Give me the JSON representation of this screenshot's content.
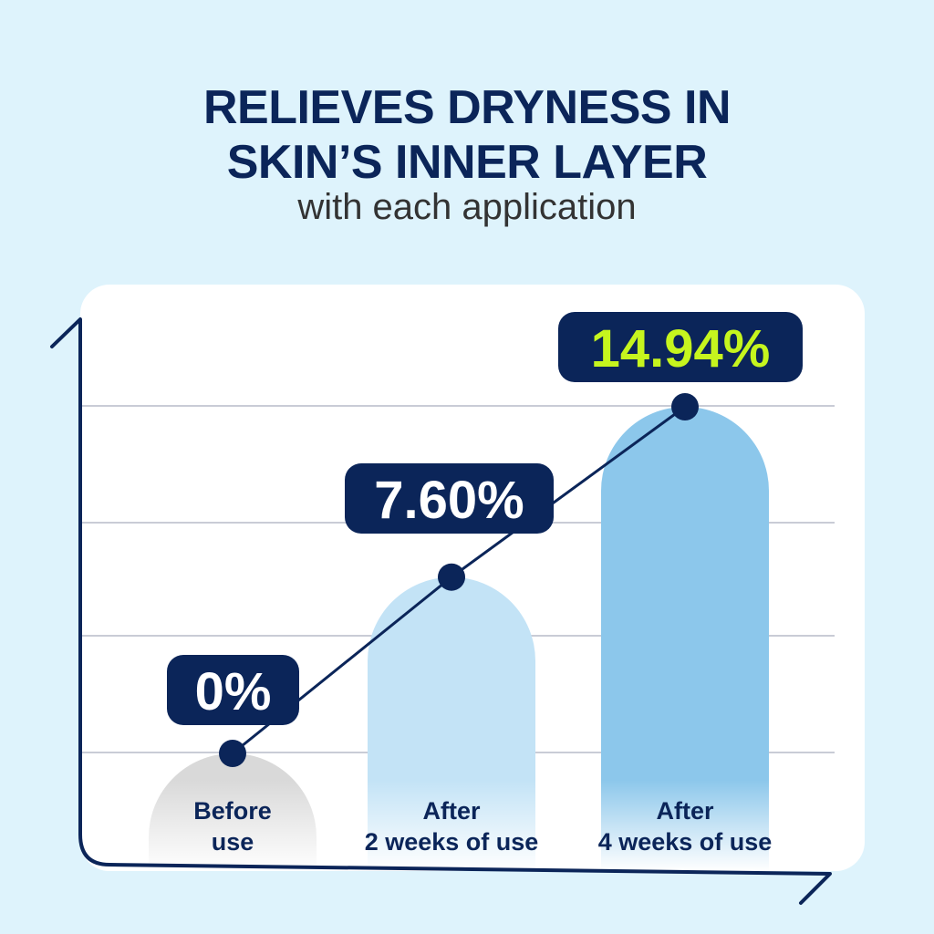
{
  "header": {
    "title_line1": "RELIEVES DRYNESS IN",
    "title_line2": "SKIN’S INNER LAYER",
    "subtitle": "with each application"
  },
  "colors": {
    "background": "#def3fc",
    "navy": "#0b2559",
    "highlight": "#c6f51e",
    "bar_before": "#d9d9d9",
    "bar_2weeks": "#c3e3f6",
    "bar_4weeks": "#8cc7eb",
    "grid": "#c9ccd6"
  },
  "chart_data": {
    "type": "bar",
    "title": "RELIEVES DRYNESS IN SKIN’S INNER LAYER",
    "subtitle": "with each application",
    "categories": [
      [
        "Before",
        "use"
      ],
      [
        "After",
        "2 weeks of use"
      ],
      [
        "After",
        "4 weeks of use"
      ]
    ],
    "values": [
      0,
      7.6,
      14.94
    ],
    "data_labels": [
      "0%",
      "7.60%",
      "14.94%"
    ],
    "unit": "%",
    "overlay_line": true,
    "grid": true,
    "axis_tick_labels": false
  }
}
